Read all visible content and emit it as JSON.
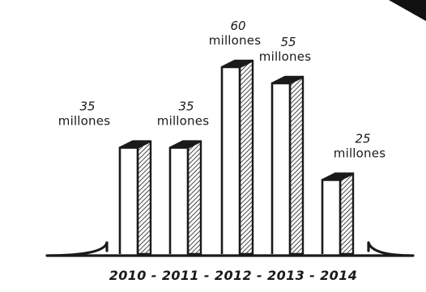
{
  "chart_data": {
    "type": "bar",
    "categories": [
      "2010",
      "2011",
      "2012",
      "2013",
      "2014"
    ],
    "values": [
      35,
      35,
      60,
      55,
      25
    ],
    "data_labels": [
      {
        "number": "35",
        "unit": "millones"
      },
      {
        "number": "35",
        "unit": "millones"
      },
      {
        "number": "60",
        "unit": "millones"
      },
      {
        "number": "55",
        "unit": "millones"
      },
      {
        "number": "25",
        "unit": "millones"
      }
    ],
    "x_axis_text": "2010 - 2011 - 2012 - 2013 - 2014",
    "ylim": [
      0,
      60
    ],
    "grid": false,
    "style": "hand-drawn 3D bars with hatched side faces",
    "colors": {
      "ink": "#1a1a1a",
      "bar_face": "#ffffff",
      "hatch": "#1a1a1a"
    }
  }
}
